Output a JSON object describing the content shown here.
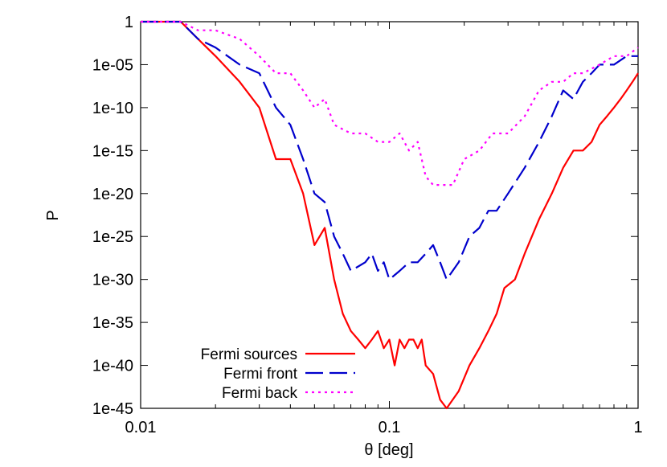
{
  "chart_data": {
    "type": "line",
    "title": "",
    "xlabel": "θ [deg]",
    "ylabel": "P",
    "x_scale": "log",
    "y_scale": "log",
    "xlim": [
      0.01,
      1
    ],
    "ylim": [
      1e-45,
      1
    ],
    "grid": false,
    "legend_position": "bottom-left",
    "x_ticks": [
      {
        "value": 0.01,
        "label": "0.01"
      },
      {
        "value": 0.1,
        "label": "0.1"
      },
      {
        "value": 1,
        "label": "1"
      }
    ],
    "y_ticks": [
      {
        "value": 1,
        "label": "1"
      },
      {
        "value": 1e-05,
        "label": "1e-05"
      },
      {
        "value": 1e-10,
        "label": "1e-10"
      },
      {
        "value": 1e-15,
        "label": "1e-15"
      },
      {
        "value": 1e-20,
        "label": "1e-20"
      },
      {
        "value": 1e-25,
        "label": "1e-25"
      },
      {
        "value": 1e-30,
        "label": "1e-30"
      },
      {
        "value": 1e-35,
        "label": "1e-35"
      },
      {
        "value": 1e-40,
        "label": "1e-40"
      },
      {
        "value": 1e-45,
        "label": "1e-45"
      }
    ],
    "series": [
      {
        "name": "Fermi sources",
        "color": "#ff0000",
        "dash": "solid",
        "points": [
          [
            0.01,
            1
          ],
          [
            0.0145,
            1
          ],
          [
            0.017,
            0.01
          ],
          [
            0.02,
            0.0001
          ],
          [
            0.025,
            1e-07
          ],
          [
            0.03,
            1e-10
          ],
          [
            0.035,
            1e-16
          ],
          [
            0.04,
            1e-16
          ],
          [
            0.045,
            1e-20
          ],
          [
            0.05,
            1e-26
          ],
          [
            0.055,
            1e-24
          ],
          [
            0.06,
            1e-30
          ],
          [
            0.065,
            1e-34
          ],
          [
            0.07,
            1e-36
          ],
          [
            0.075,
            1e-37
          ],
          [
            0.08,
            1e-38
          ],
          [
            0.085,
            1e-37
          ],
          [
            0.09,
            1e-36
          ],
          [
            0.095,
            1e-38
          ],
          [
            0.1,
            1e-37
          ],
          [
            0.105,
            1e-40
          ],
          [
            0.11,
            1e-37
          ],
          [
            0.115,
            1e-38
          ],
          [
            0.12,
            1e-37
          ],
          [
            0.125,
            1e-37
          ],
          [
            0.13,
            1e-38
          ],
          [
            0.135,
            1e-37
          ],
          [
            0.14,
            1e-40
          ],
          [
            0.15,
            1e-41
          ],
          [
            0.16,
            1e-44
          ],
          [
            0.17,
            1e-45
          ],
          [
            0.19,
            1e-43
          ],
          [
            0.21,
            1e-40
          ],
          [
            0.23,
            1e-38
          ],
          [
            0.25,
            1e-36
          ],
          [
            0.27,
            1e-34
          ],
          [
            0.29,
            1e-31
          ],
          [
            0.32,
            1e-30
          ],
          [
            0.35,
            1e-27
          ],
          [
            0.4,
            1e-23
          ],
          [
            0.45,
            1e-20
          ],
          [
            0.5,
            1e-17
          ],
          [
            0.55,
            1e-15
          ],
          [
            0.6,
            1e-15
          ],
          [
            0.65,
            1e-14
          ],
          [
            0.7,
            1e-12
          ],
          [
            0.75,
            1e-11
          ],
          [
            0.8,
            1e-10
          ],
          [
            0.85,
            1e-09
          ],
          [
            0.9,
            1e-08
          ],
          [
            0.95,
            1e-07
          ],
          [
            1.0,
            1e-06
          ]
        ]
      },
      {
        "name": "Fermi front",
        "color": "#0000cc",
        "dash": "long-dash",
        "points": [
          [
            0.01,
            1
          ],
          [
            0.0145,
            1
          ],
          [
            0.017,
            0.01
          ],
          [
            0.02,
            0.001
          ],
          [
            0.025,
            1e-05
          ],
          [
            0.03,
            1e-06
          ],
          [
            0.035,
            1e-10
          ],
          [
            0.04,
            1e-12
          ],
          [
            0.045,
            1e-16
          ],
          [
            0.05,
            1e-20
          ],
          [
            0.055,
            1e-21
          ],
          [
            0.06,
            1e-25
          ],
          [
            0.065,
            1e-27
          ],
          [
            0.07,
            1e-29
          ],
          [
            0.08,
            1e-28
          ],
          [
            0.085,
            1e-27
          ],
          [
            0.09,
            1e-29
          ],
          [
            0.095,
            1e-28
          ],
          [
            0.1,
            1e-30
          ],
          [
            0.11,
            1e-29
          ],
          [
            0.12,
            1e-28
          ],
          [
            0.13,
            1e-28
          ],
          [
            0.14,
            1e-27
          ],
          [
            0.15,
            1e-26
          ],
          [
            0.16,
            1e-28
          ],
          [
            0.17,
            1e-30
          ],
          [
            0.19,
            1e-28
          ],
          [
            0.21,
            1e-25
          ],
          [
            0.23,
            1e-24
          ],
          [
            0.25,
            1e-22
          ],
          [
            0.27,
            1e-22
          ],
          [
            0.3,
            1e-20
          ],
          [
            0.35,
            1e-17
          ],
          [
            0.4,
            1e-14
          ],
          [
            0.45,
            1e-11
          ],
          [
            0.5,
            1e-08
          ],
          [
            0.55,
            1e-09
          ],
          [
            0.6,
            1e-07
          ],
          [
            0.65,
            1e-06
          ],
          [
            0.7,
            1e-05
          ],
          [
            0.8,
            1e-05
          ],
          [
            0.9,
            0.0001
          ],
          [
            1.0,
            0.0001
          ]
        ]
      },
      {
        "name": "Fermi back",
        "color": "#ff00ff",
        "dash": "dotted",
        "points": [
          [
            0.01,
            1
          ],
          [
            0.0145,
            1
          ],
          [
            0.017,
            0.1
          ],
          [
            0.02,
            0.1
          ],
          [
            0.025,
            0.01
          ],
          [
            0.03,
            0.0001
          ],
          [
            0.035,
            1e-06
          ],
          [
            0.04,
            1e-06
          ],
          [
            0.045,
            1e-08
          ],
          [
            0.05,
            1e-10
          ],
          [
            0.055,
            1e-09
          ],
          [
            0.06,
            1e-12
          ],
          [
            0.07,
            1e-13
          ],
          [
            0.08,
            1e-13
          ],
          [
            0.09,
            1e-14
          ],
          [
            0.1,
            1e-14
          ],
          [
            0.11,
            1e-13
          ],
          [
            0.12,
            1e-15
          ],
          [
            0.13,
            1e-14
          ],
          [
            0.14,
            1e-18
          ],
          [
            0.15,
            1e-19
          ],
          [
            0.16,
            1e-19
          ],
          [
            0.17,
            1e-19
          ],
          [
            0.18,
            1e-19
          ],
          [
            0.2,
            1e-16
          ],
          [
            0.23,
            1e-15
          ],
          [
            0.26,
            1e-13
          ],
          [
            0.3,
            1e-13
          ],
          [
            0.35,
            1e-11
          ],
          [
            0.4,
            1e-08
          ],
          [
            0.45,
            1e-07
          ],
          [
            0.5,
            1e-07
          ],
          [
            0.55,
            1e-06
          ],
          [
            0.6,
            1e-06
          ],
          [
            0.7,
            1e-05
          ],
          [
            0.8,
            0.0001
          ],
          [
            0.9,
            0.0001
          ],
          [
            1.0,
            0.001
          ]
        ]
      }
    ]
  }
}
